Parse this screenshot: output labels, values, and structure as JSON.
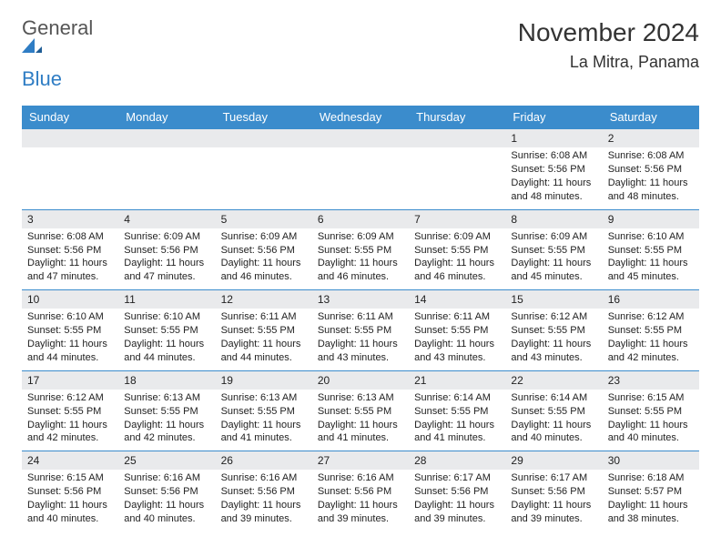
{
  "brand": {
    "part1": "General",
    "part2": "Blue"
  },
  "title": "November 2024",
  "location": "La Mitra, Panama",
  "colors": {
    "header_bg": "#3b8ccc",
    "header_text": "#ffffff",
    "daynum_bg": "#e9eaec",
    "border": "#3b8ccc",
    "brand_blue": "#2f7dc4",
    "text": "#222222",
    "page_bg": "#ffffff"
  },
  "columns": [
    "Sunday",
    "Monday",
    "Tuesday",
    "Wednesday",
    "Thursday",
    "Friday",
    "Saturday"
  ],
  "weeks": [
    [
      null,
      null,
      null,
      null,
      null,
      {
        "n": "1",
        "sunrise": "Sunrise: 6:08 AM",
        "sunset": "Sunset: 5:56 PM",
        "day1": "Daylight: 11 hours",
        "day2": "and 48 minutes."
      },
      {
        "n": "2",
        "sunrise": "Sunrise: 6:08 AM",
        "sunset": "Sunset: 5:56 PM",
        "day1": "Daylight: 11 hours",
        "day2": "and 48 minutes."
      }
    ],
    [
      {
        "n": "3",
        "sunrise": "Sunrise: 6:08 AM",
        "sunset": "Sunset: 5:56 PM",
        "day1": "Daylight: 11 hours",
        "day2": "and 47 minutes."
      },
      {
        "n": "4",
        "sunrise": "Sunrise: 6:09 AM",
        "sunset": "Sunset: 5:56 PM",
        "day1": "Daylight: 11 hours",
        "day2": "and 47 minutes."
      },
      {
        "n": "5",
        "sunrise": "Sunrise: 6:09 AM",
        "sunset": "Sunset: 5:56 PM",
        "day1": "Daylight: 11 hours",
        "day2": "and 46 minutes."
      },
      {
        "n": "6",
        "sunrise": "Sunrise: 6:09 AM",
        "sunset": "Sunset: 5:55 PM",
        "day1": "Daylight: 11 hours",
        "day2": "and 46 minutes."
      },
      {
        "n": "7",
        "sunrise": "Sunrise: 6:09 AM",
        "sunset": "Sunset: 5:55 PM",
        "day1": "Daylight: 11 hours",
        "day2": "and 46 minutes."
      },
      {
        "n": "8",
        "sunrise": "Sunrise: 6:09 AM",
        "sunset": "Sunset: 5:55 PM",
        "day1": "Daylight: 11 hours",
        "day2": "and 45 minutes."
      },
      {
        "n": "9",
        "sunrise": "Sunrise: 6:10 AM",
        "sunset": "Sunset: 5:55 PM",
        "day1": "Daylight: 11 hours",
        "day2": "and 45 minutes."
      }
    ],
    [
      {
        "n": "10",
        "sunrise": "Sunrise: 6:10 AM",
        "sunset": "Sunset: 5:55 PM",
        "day1": "Daylight: 11 hours",
        "day2": "and 44 minutes."
      },
      {
        "n": "11",
        "sunrise": "Sunrise: 6:10 AM",
        "sunset": "Sunset: 5:55 PM",
        "day1": "Daylight: 11 hours",
        "day2": "and 44 minutes."
      },
      {
        "n": "12",
        "sunrise": "Sunrise: 6:11 AM",
        "sunset": "Sunset: 5:55 PM",
        "day1": "Daylight: 11 hours",
        "day2": "and 44 minutes."
      },
      {
        "n": "13",
        "sunrise": "Sunrise: 6:11 AM",
        "sunset": "Sunset: 5:55 PM",
        "day1": "Daylight: 11 hours",
        "day2": "and 43 minutes."
      },
      {
        "n": "14",
        "sunrise": "Sunrise: 6:11 AM",
        "sunset": "Sunset: 5:55 PM",
        "day1": "Daylight: 11 hours",
        "day2": "and 43 minutes."
      },
      {
        "n": "15",
        "sunrise": "Sunrise: 6:12 AM",
        "sunset": "Sunset: 5:55 PM",
        "day1": "Daylight: 11 hours",
        "day2": "and 43 minutes."
      },
      {
        "n": "16",
        "sunrise": "Sunrise: 6:12 AM",
        "sunset": "Sunset: 5:55 PM",
        "day1": "Daylight: 11 hours",
        "day2": "and 42 minutes."
      }
    ],
    [
      {
        "n": "17",
        "sunrise": "Sunrise: 6:12 AM",
        "sunset": "Sunset: 5:55 PM",
        "day1": "Daylight: 11 hours",
        "day2": "and 42 minutes."
      },
      {
        "n": "18",
        "sunrise": "Sunrise: 6:13 AM",
        "sunset": "Sunset: 5:55 PM",
        "day1": "Daylight: 11 hours",
        "day2": "and 42 minutes."
      },
      {
        "n": "19",
        "sunrise": "Sunrise: 6:13 AM",
        "sunset": "Sunset: 5:55 PM",
        "day1": "Daylight: 11 hours",
        "day2": "and 41 minutes."
      },
      {
        "n": "20",
        "sunrise": "Sunrise: 6:13 AM",
        "sunset": "Sunset: 5:55 PM",
        "day1": "Daylight: 11 hours",
        "day2": "and 41 minutes."
      },
      {
        "n": "21",
        "sunrise": "Sunrise: 6:14 AM",
        "sunset": "Sunset: 5:55 PM",
        "day1": "Daylight: 11 hours",
        "day2": "and 41 minutes."
      },
      {
        "n": "22",
        "sunrise": "Sunrise: 6:14 AM",
        "sunset": "Sunset: 5:55 PM",
        "day1": "Daylight: 11 hours",
        "day2": "and 40 minutes."
      },
      {
        "n": "23",
        "sunrise": "Sunrise: 6:15 AM",
        "sunset": "Sunset: 5:55 PM",
        "day1": "Daylight: 11 hours",
        "day2": "and 40 minutes."
      }
    ],
    [
      {
        "n": "24",
        "sunrise": "Sunrise: 6:15 AM",
        "sunset": "Sunset: 5:56 PM",
        "day1": "Daylight: 11 hours",
        "day2": "and 40 minutes."
      },
      {
        "n": "25",
        "sunrise": "Sunrise: 6:16 AM",
        "sunset": "Sunset: 5:56 PM",
        "day1": "Daylight: 11 hours",
        "day2": "and 40 minutes."
      },
      {
        "n": "26",
        "sunrise": "Sunrise: 6:16 AM",
        "sunset": "Sunset: 5:56 PM",
        "day1": "Daylight: 11 hours",
        "day2": "and 39 minutes."
      },
      {
        "n": "27",
        "sunrise": "Sunrise: 6:16 AM",
        "sunset": "Sunset: 5:56 PM",
        "day1": "Daylight: 11 hours",
        "day2": "and 39 minutes."
      },
      {
        "n": "28",
        "sunrise": "Sunrise: 6:17 AM",
        "sunset": "Sunset: 5:56 PM",
        "day1": "Daylight: 11 hours",
        "day2": "and 39 minutes."
      },
      {
        "n": "29",
        "sunrise": "Sunrise: 6:17 AM",
        "sunset": "Sunset: 5:56 PM",
        "day1": "Daylight: 11 hours",
        "day2": "and 39 minutes."
      },
      {
        "n": "30",
        "sunrise": "Sunrise: 6:18 AM",
        "sunset": "Sunset: 5:57 PM",
        "day1": "Daylight: 11 hours",
        "day2": "and 38 minutes."
      }
    ]
  ]
}
